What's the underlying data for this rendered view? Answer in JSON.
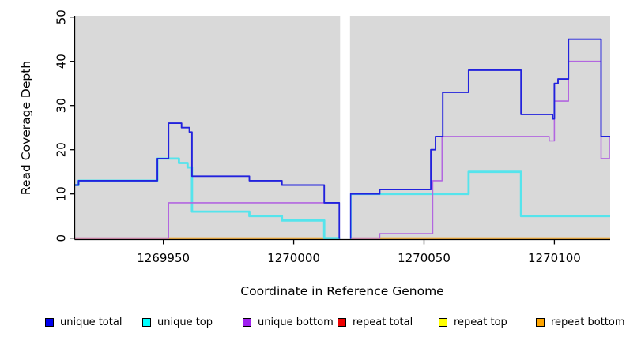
{
  "chart_data": {
    "type": "line",
    "subtype": "step-coverage",
    "title": "",
    "xlabel": "Coordinate in Reference Genome",
    "ylabel": "Read Coverage Depth",
    "xlim": [
      1269916,
      1270121.4
    ],
    "ylim": [
      0,
      50
    ],
    "x_ticks": [
      1269950,
      1270000,
      1270050,
      1270100
    ],
    "y_ticks": [
      0,
      10,
      20,
      30,
      40,
      50
    ],
    "grid": false,
    "panel_bg": "#d9d9d9",
    "gap_x": [
      1270017.8,
      1270021.6
    ],
    "legend_position": "bottom",
    "series": [
      {
        "name": "unique total",
        "color": "#2222dd",
        "points": [
          [
            1269916,
            12
          ],
          [
            1269917.5,
            13
          ],
          [
            1269947.7,
            18
          ],
          [
            1269952,
            26
          ],
          [
            1269957,
            25
          ],
          [
            1269960,
            24
          ],
          [
            1269961,
            14
          ],
          [
            1269983,
            13
          ],
          [
            1269995.5,
            12
          ],
          [
            1270011.7,
            8
          ],
          [
            1270017.5,
            0
          ],
          [
            1270021.8,
            10
          ],
          [
            1270033,
            11
          ],
          [
            1270052.6,
            20
          ],
          [
            1270054.4,
            23
          ],
          [
            1270057.2,
            33
          ],
          [
            1270067.1,
            38
          ],
          [
            1270087.2,
            28
          ],
          [
            1270099.3,
            27
          ],
          [
            1270100,
            35
          ],
          [
            1270101.4,
            36
          ],
          [
            1270105.4,
            45
          ],
          [
            1270117.9,
            23
          ],
          [
            1270121.4,
            23
          ]
        ]
      },
      {
        "name": "unique top",
        "color": "#55e4ec",
        "points": [
          [
            1269916,
            12
          ],
          [
            1269917.5,
            13
          ],
          [
            1269947.7,
            18
          ],
          [
            1269956,
            17
          ],
          [
            1269959.3,
            16
          ],
          [
            1269961,
            6
          ],
          [
            1269983,
            5
          ],
          [
            1269995.5,
            4
          ],
          [
            1270011.7,
            0
          ],
          [
            1270017.5,
            0
          ],
          [
            1270021.8,
            10
          ],
          [
            1270067.1,
            15
          ],
          [
            1270087.2,
            5
          ],
          [
            1270121.4,
            5
          ]
        ]
      },
      {
        "name": "unique bottom",
        "color": "#b266e0",
        "points": [
          [
            1269916,
            0
          ],
          [
            1269952,
            8
          ],
          [
            1270017.5,
            0
          ],
          [
            1270021.8,
            0
          ],
          [
            1270033,
            1
          ],
          [
            1270053.3,
            13
          ],
          [
            1270056.9,
            23
          ],
          [
            1270098,
            22
          ],
          [
            1270100,
            31
          ],
          [
            1270105.4,
            40
          ],
          [
            1270117.9,
            18
          ],
          [
            1270121.1,
            23
          ],
          [
            1270121.4,
            23
          ]
        ]
      },
      {
        "name": "repeat total",
        "color": "#df5f93",
        "points": [
          [
            1269916,
            0
          ],
          [
            1270121.4,
            0
          ]
        ],
        "visible_segments": [
          [
            1269916,
            1269952
          ],
          [
            1270021.8,
            1270033
          ]
        ]
      },
      {
        "name": "repeat top",
        "color": "#ffff00",
        "points": [
          [
            1269916,
            0
          ],
          [
            1270121.4,
            0
          ]
        ],
        "visible_segments": []
      },
      {
        "name": "repeat bottom",
        "color": "#ff9d00",
        "points": [
          [
            1269952,
            0
          ],
          [
            1270121.4,
            0
          ]
        ],
        "visible_segments": [
          [
            1269952,
            1270017.5
          ],
          [
            1270033,
            1270121.4
          ]
        ]
      }
    ]
  },
  "legend": {
    "items": [
      {
        "label": "unique total",
        "color": "#0000ee"
      },
      {
        "label": "unique top",
        "color": "#00ffff"
      },
      {
        "label": "unique bottom",
        "color": "#a020f0"
      },
      {
        "label": "repeat total",
        "color": "#ee0000"
      },
      {
        "label": "repeat top",
        "color": "#ffff00"
      },
      {
        "label": "repeat bottom",
        "color": "#ffa500"
      }
    ]
  }
}
